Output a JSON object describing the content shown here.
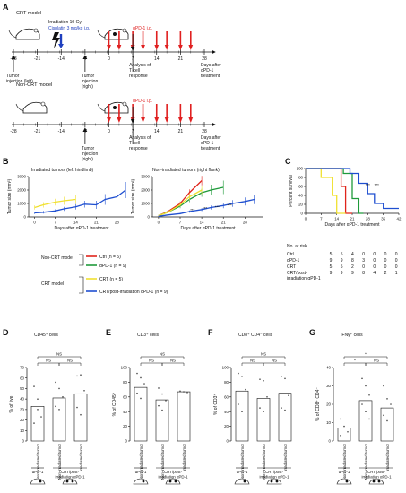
{
  "panels": {
    "A": "A",
    "B": "B",
    "C": "C",
    "D": "D",
    "E": "E",
    "F": "F",
    "G": "G"
  },
  "timeline": {
    "crt_model_title": "CRT model",
    "irradiation": "Irradiation 10 Gy",
    "cisplatin": "Cisplatin 3 mg/kg i.p.",
    "apd1": "αPD-1 i.p.",
    "ticks": [
      "-28",
      "-21",
      "-14",
      "-7",
      "0",
      "7",
      "14",
      "21",
      "28"
    ],
    "tumor_left": [
      "Tumor",
      "injection (left)"
    ],
    "tumor_right": [
      "Tumor",
      "injection",
      "(right)"
    ],
    "analysis": [
      "Analysis of",
      "T cell",
      "response"
    ],
    "days_after": [
      "Days after",
      "αPD-1",
      "treatment"
    ],
    "noncrt_model_title": "Non-CRT model",
    "colors": {
      "arrow": "#e02020",
      "cisplatin": "#1f3fbf",
      "text": "#111111"
    }
  },
  "growth_left": {
    "title": "Irradiated tumors (left hindlimb)",
    "ylabel": "Tumor size (mm³)",
    "xlabel": "Days after αPD-1 treatment",
    "yticks": [
      "0",
      "1000",
      "2000",
      "3000"
    ],
    "xticks": [
      "0",
      "7",
      "14",
      "21",
      "28"
    ]
  },
  "growth_right": {
    "title": "Non-irradiated tumors (right flank)",
    "ylabel": "Tumor size (mm³)",
    "xlabel": "Days after αPD-1 treatment",
    "yticks": [
      "0",
      "1000",
      "2000",
      "3000"
    ],
    "xticks": [
      "0",
      "7",
      "14",
      "21",
      "28"
    ],
    "sig": [
      "***",
      "***",
      "***",
      "***"
    ]
  },
  "survival": {
    "ylabel": "Percent survival",
    "xlabel": "Days after αPD-1 treatment",
    "yticks": [
      "0",
      "20",
      "40",
      "60",
      "80",
      "100"
    ],
    "xticks": [
      "0",
      "7",
      "14",
      "21",
      "28",
      "35",
      "42"
    ],
    "sig": [
      "***",
      "***"
    ]
  },
  "risk": {
    "header": "No. at risk",
    "rows": [
      {
        "label": "Ctrl",
        "values": [
          "5",
          "5",
          "4",
          "0",
          "0",
          "0",
          "0"
        ]
      },
      {
        "label": "αPD-1",
        "values": [
          "9",
          "9",
          "8",
          "3",
          "0",
          "0",
          "0"
        ]
      },
      {
        "label": "CRT",
        "values": [
          "5",
          "5",
          "2",
          "0",
          "0",
          "0",
          "0"
        ]
      },
      {
        "label": "CRT/post-",
        "label2": "irradiation αPD-1",
        "values": [
          "9",
          "9",
          "9",
          "8",
          "4",
          "2",
          "1"
        ]
      }
    ]
  },
  "legend": {
    "noncrt": "Non-CRT model",
    "crt": "CRT model",
    "items": [
      {
        "label": "Ctrl (n = 5)",
        "color": "#e0241b"
      },
      {
        "label": "αPD-1 (n = 9)",
        "color": "#1f9a3a"
      },
      {
        "label": "CRT (n = 5)",
        "color": "#f0e030"
      },
      {
        "label": "CRT/post-irradiation αPD-1 (n = 9)",
        "color": "#1f4fd0"
      }
    ]
  },
  "chart_data": [
    {
      "type": "line",
      "title": "Irradiated tumors (left hindlimb)",
      "xlabel": "Days after αPD-1 treatment",
      "ylabel": "Tumor size (mm³)",
      "xlim": [
        -2,
        34
      ],
      "ylim": [
        0,
        3000
      ],
      "series": [
        {
          "name": "CRT (n = 5)",
          "color": "#f0e030",
          "x": [
            0,
            3,
            7,
            10,
            14
          ],
          "y": [
            700,
            900,
            1100,
            1200,
            1300
          ],
          "err": [
            150,
            200,
            250,
            300,
            350
          ]
        },
        {
          "name": "CRT/post-irradiation αPD-1 (n = 9)",
          "color": "#1f4fd0",
          "x": [
            0,
            3,
            7,
            10,
            14,
            17,
            21,
            24,
            28,
            31
          ],
          "y": [
            300,
            350,
            450,
            600,
            750,
            950,
            900,
            1300,
            1500,
            2000
          ],
          "err": [
            80,
            100,
            120,
            150,
            200,
            250,
            300,
            400,
            500,
            600
          ]
        }
      ]
    },
    {
      "type": "line",
      "title": "Non-irradiated tumors (right flank)",
      "xlabel": "Days after αPD-1 treatment",
      "ylabel": "Tumor size (mm³)",
      "xlim": [
        -2,
        34
      ],
      "ylim": [
        0,
        3000
      ],
      "series": [
        {
          "name": "Ctrl (n = 5)",
          "color": "#e0241b",
          "x": [
            0,
            3,
            7,
            10,
            14
          ],
          "y": [
            100,
            400,
            1000,
            1800,
            2700
          ],
          "err": [
            30,
            80,
            150,
            250,
            350
          ]
        },
        {
          "name": "αPD-1 (n = 9)",
          "color": "#1f9a3a",
          "x": [
            0,
            3,
            7,
            10,
            14,
            17,
            21
          ],
          "y": [
            100,
            350,
            800,
            1300,
            1800,
            2000,
            2200
          ],
          "err": [
            30,
            80,
            150,
            200,
            300,
            400,
            500
          ]
        },
        {
          "name": "CRT (n = 5)",
          "color": "#f0e030",
          "x": [
            0,
            3,
            7,
            10,
            14
          ],
          "y": [
            100,
            350,
            900,
            1500,
            2000
          ],
          "err": [
            30,
            80,
            150,
            250,
            300
          ]
        },
        {
          "name": "CRT/post-irradiation αPD-1 (n = 9)",
          "color": "#1f4fd0",
          "x": [
            0,
            3,
            7,
            10,
            14,
            17,
            21,
            24,
            28,
            31
          ],
          "y": [
            50,
            150,
            250,
            400,
            550,
            700,
            850,
            1000,
            1150,
            1300
          ],
          "err": [
            20,
            40,
            60,
            80,
            120,
            150,
            200,
            250,
            300,
            350
          ]
        }
      ]
    },
    {
      "type": "line",
      "title": "",
      "xlabel": "Days after αPD-1 treatment",
      "ylabel": "Percent survival",
      "xlim": [
        0,
        42
      ],
      "ylim": [
        0,
        100
      ],
      "series": [
        {
          "name": "Ctrl",
          "color": "#e0241b",
          "x": [
            0,
            16,
            16,
            18,
            18,
            21
          ],
          "y": [
            100,
            100,
            60,
            60,
            0,
            0
          ]
        },
        {
          "name": "αPD-1",
          "color": "#1f9a3a",
          "x": [
            0,
            17,
            17,
            21,
            21,
            24,
            24,
            26
          ],
          "y": [
            100,
            100,
            89,
            89,
            33,
            33,
            0,
            0
          ]
        },
        {
          "name": "CRT",
          "color": "#f0e030",
          "x": [
            0,
            7,
            7,
            12,
            12,
            14,
            14,
            18
          ],
          "y": [
            100,
            100,
            80,
            80,
            40,
            40,
            0,
            0
          ]
        },
        {
          "name": "CRT/post-irradiation αPD-1",
          "color": "#1f4fd0",
          "x": [
            0,
            20,
            20,
            24,
            24,
            28,
            28,
            31,
            31,
            35,
            35,
            42
          ],
          "y": [
            100,
            100,
            89,
            89,
            67,
            67,
            44,
            44,
            22,
            22,
            11,
            11
          ]
        }
      ]
    },
    {
      "type": "bar",
      "title": "CD45⁺ cells",
      "ylabel": "% of live",
      "ylim": [
        0,
        70
      ],
      "yticks": [
        "0",
        "10",
        "20",
        "30",
        "40",
        "50",
        "60",
        "70"
      ],
      "categories": [
        "Non-irradiated tumor",
        "Non-irradiated tumor",
        "Irradiated tumor"
      ],
      "values": [
        33,
        41,
        45
      ],
      "points": [
        [
          52,
          40,
          23,
          17,
          30
        ],
        [
          56,
          50,
          42,
          33,
          30
        ],
        [
          62,
          63,
          48,
          32,
          25
        ]
      ],
      "sig": [
        "NS",
        "NS",
        "NS"
      ]
    },
    {
      "type": "bar",
      "title": "CD3⁺ cells",
      "ylabel": "% of CD45⁺",
      "ylim": [
        0,
        100
      ],
      "yticks": [
        "0",
        "20",
        "40",
        "60",
        "80",
        "100"
      ],
      "categories": [
        "Non-irradiated tumor",
        "Non-irradiated tumor",
        "Irradiated tumor"
      ],
      "values": [
        73,
        56,
        67
      ],
      "points": [
        [
          92,
          86,
          78,
          65,
          58
        ],
        [
          72,
          64,
          55,
          48,
          42
        ],
        [
          68,
          67,
          66
        ]
      ],
      "sig": [
        "NS",
        "NS",
        "NS"
      ]
    },
    {
      "type": "bar",
      "title": "CD8⁺ CD4⁻ cells",
      "ylabel": "% of CD3⁺",
      "ylim": [
        0,
        100
      ],
      "yticks": [
        "0",
        "20",
        "40",
        "60",
        "80",
        "100"
      ],
      "categories": [
        "Non-irradiated tumor",
        "Non-irradiated tumor",
        "Irradiated tumor"
      ],
      "values": [
        68,
        58,
        65
      ],
      "points": [
        [
          92,
          88,
          70,
          50,
          40
        ],
        [
          84,
          82,
          60,
          45,
          40
        ],
        [
          88,
          85,
          62,
          45,
          42
        ]
      ],
      "sig": [
        "NS",
        "NS",
        "NS"
      ]
    },
    {
      "type": "bar",
      "title": "IFNγ⁺ cells",
      "ylabel": "% of CD8⁺ CD4⁻",
      "ylim": [
        0,
        40
      ],
      "yticks": [
        "0",
        "10",
        "20",
        "30",
        "40"
      ],
      "categories": [
        "Non-irradiated tumor",
        "Non-irradiated tumor",
        "Irradiated tumor"
      ],
      "values": [
        7,
        22,
        18
      ],
      "points": [
        [
          12,
          8,
          5,
          3
        ],
        [
          34,
          30,
          25,
          20,
          16,
          12
        ],
        [
          30,
          23,
          20,
          14,
          11
        ]
      ],
      "sig": [
        "*",
        "*",
        "NS"
      ]
    }
  ],
  "bar_groups": {
    "left": "αPD-1",
    "right": [
      "CRT/post-",
      "irradiation αPD-1"
    ]
  }
}
